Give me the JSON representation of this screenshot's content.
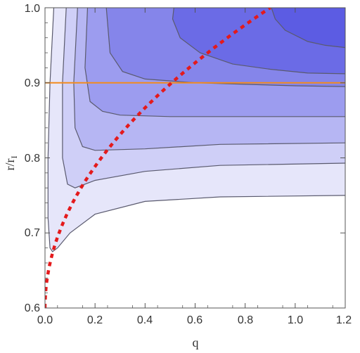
{
  "chart_data": {
    "type": "contour",
    "xlabel": "q",
    "ylabel_main": "r/r",
    "ylabel_sub": "I",
    "xlim": [
      0.0,
      1.2
    ],
    "ylim": [
      0.6,
      1.0
    ],
    "x_ticks": [
      "0.0",
      "0.2",
      "0.4",
      "0.6",
      "0.8",
      "1.0",
      "1.2"
    ],
    "y_ticks": [
      "0.6",
      "0.7",
      "0.8",
      "0.9",
      "1.0"
    ],
    "x_tick_values": [
      0.0,
      0.2,
      0.4,
      0.6,
      0.8,
      1.0,
      1.2
    ],
    "y_tick_values": [
      0.6,
      0.7,
      0.8,
      0.9,
      1.0
    ],
    "colors": {
      "level1": "#e6e6fa",
      "level2": "#cfcff7",
      "level3": "#b6b6f3",
      "level4": "#9c9cef",
      "level5": "#8585ea",
      "level6": "#6b6be6",
      "contour_line": "#5a5a6e",
      "horizontal_line": "#f28b1e",
      "dashed_curve": "#e41a1c",
      "frame": "#555555"
    },
    "contours": [
      {
        "level": 1,
        "points": [
          [
            0.035,
            1.0
          ],
          [
            0.02,
            0.9
          ],
          [
            0.012,
            0.8
          ],
          [
            0.012,
            0.72
          ],
          [
            0.02,
            0.68
          ],
          [
            0.03,
            0.675
          ],
          [
            0.05,
            0.68
          ],
          [
            0.1,
            0.7
          ],
          [
            0.2,
            0.725
          ],
          [
            0.4,
            0.742
          ],
          [
            0.7,
            0.748
          ],
          [
            1.2,
            0.75
          ]
        ]
      },
      {
        "level": 2,
        "points": [
          [
            0.085,
            1.0
          ],
          [
            0.07,
            0.9
          ],
          [
            0.07,
            0.8
          ],
          [
            0.09,
            0.765
          ],
          [
            0.12,
            0.76
          ],
          [
            0.2,
            0.77
          ],
          [
            0.4,
            0.782
          ],
          [
            0.7,
            0.79
          ],
          [
            1.2,
            0.793
          ]
        ]
      },
      {
        "level": 3,
        "points": [
          [
            0.13,
            1.0
          ],
          [
            0.115,
            0.9
          ],
          [
            0.12,
            0.84
          ],
          [
            0.15,
            0.815
          ],
          [
            0.2,
            0.81
          ],
          [
            0.4,
            0.812
          ],
          [
            0.7,
            0.818
          ],
          [
            1.2,
            0.82
          ]
        ]
      },
      {
        "level": 4,
        "points": [
          [
            0.17,
            1.0
          ],
          [
            0.16,
            0.92
          ],
          [
            0.18,
            0.875
          ],
          [
            0.23,
            0.862
          ],
          [
            0.3,
            0.857
          ],
          [
            0.5,
            0.855
          ],
          [
            0.8,
            0.855
          ],
          [
            1.2,
            0.855
          ]
        ]
      },
      {
        "level": 5,
        "points": [
          [
            0.245,
            1.0
          ],
          [
            0.26,
            0.94
          ],
          [
            0.31,
            0.915
          ],
          [
            0.4,
            0.905
          ],
          [
            0.6,
            0.9
          ],
          [
            0.8,
            0.898
          ],
          [
            1.0,
            0.896
          ],
          [
            1.2,
            0.895
          ]
        ]
      },
      {
        "level": 6,
        "points": [
          [
            0.515,
            1.0
          ],
          [
            0.51,
            0.985
          ],
          [
            0.54,
            0.96
          ],
          [
            0.62,
            0.94
          ],
          [
            0.75,
            0.925
          ],
          [
            0.9,
            0.918
          ],
          [
            1.05,
            0.913
          ],
          [
            1.2,
            0.912
          ]
        ]
      },
      {
        "level": 7,
        "points": [
          [
            0.905,
            1.0
          ],
          [
            0.92,
            0.985
          ],
          [
            0.96,
            0.97
          ],
          [
            1.05,
            0.955
          ],
          [
            1.12,
            0.95
          ],
          [
            1.2,
            0.947
          ]
        ]
      }
    ],
    "horizontal_line_y": 0.9,
    "dashed_curve": {
      "formula": "r = 0.6 + 0.4*sqrt(q/0.9)",
      "q_range": [
        0.0,
        0.9
      ]
    }
  }
}
